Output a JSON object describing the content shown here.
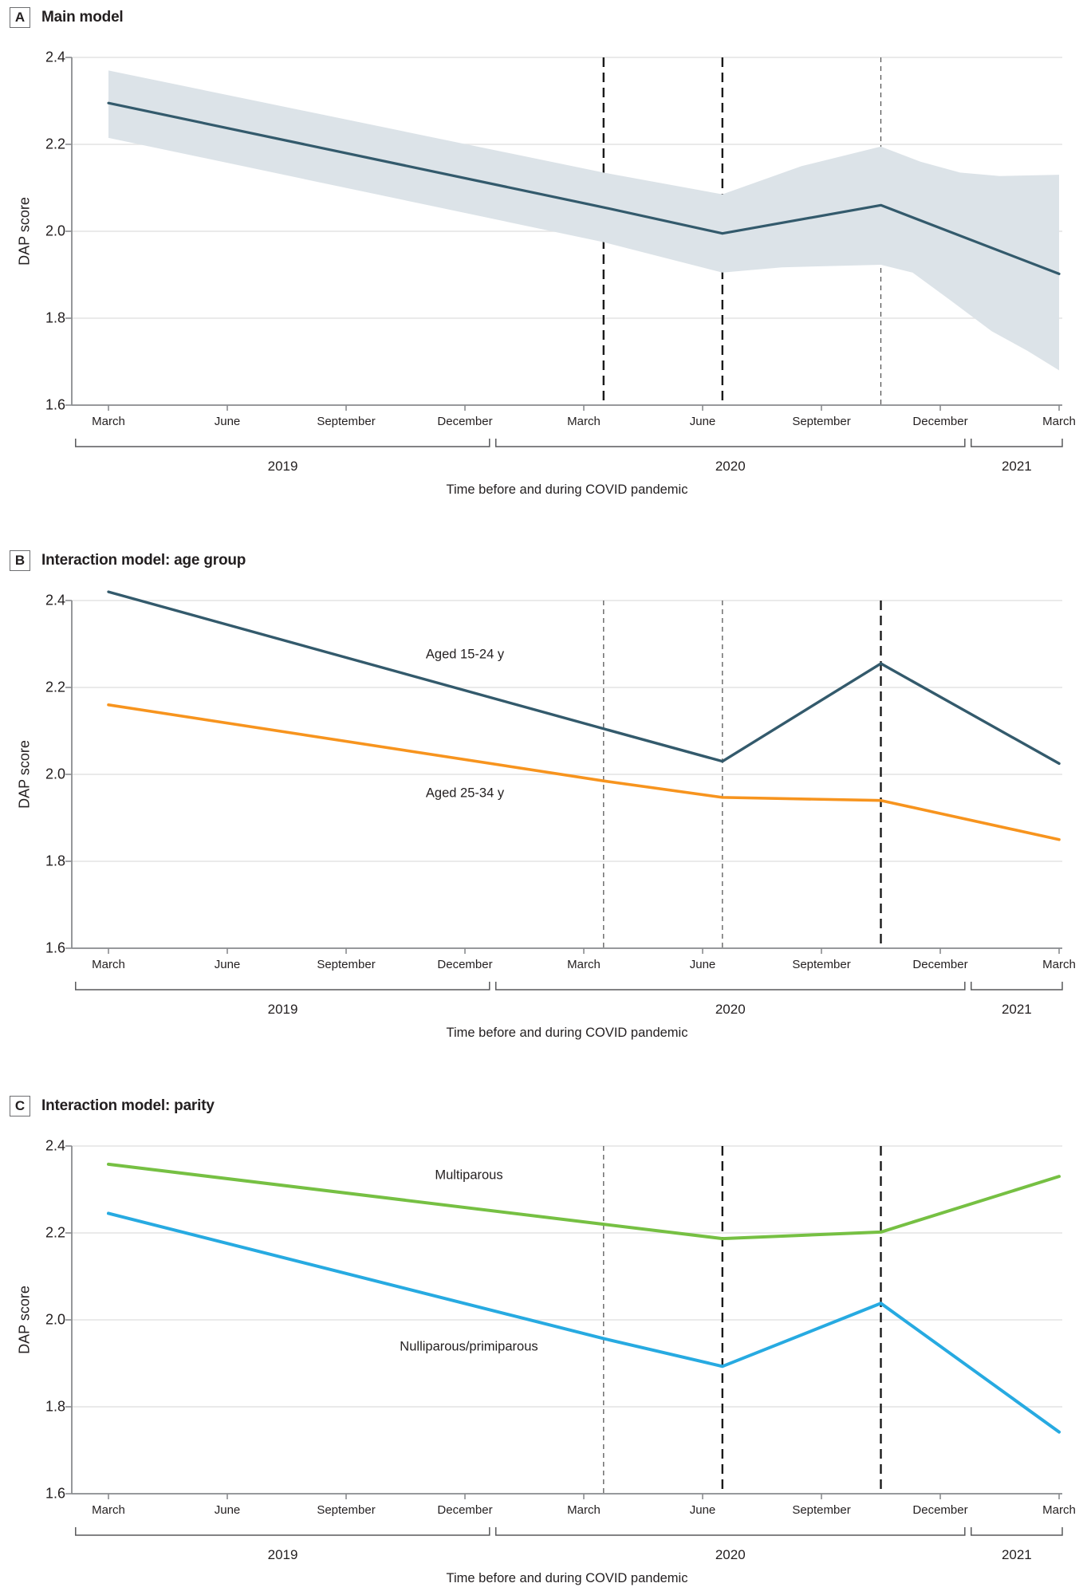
{
  "figure": {
    "xlabel": "Time before and during COVID pandemic",
    "ylabel": "DAP score",
    "x_tick_labels": [
      "March",
      "June",
      "September",
      "December",
      "March",
      "June",
      "September",
      "December",
      "March"
    ],
    "x_tick_months": [
      0,
      3,
      6,
      9,
      12,
      15,
      18,
      21,
      24
    ],
    "year_groups": [
      {
        "label": "2019",
        "start_month": -0.83,
        "end_month": 9.62,
        "label_month": 4.4
      },
      {
        "label": "2020",
        "start_month": 9.78,
        "end_month": 21.62,
        "label_month": 15.7
      },
      {
        "label": "2021",
        "start_month": 21.78,
        "end_month": 24.08,
        "label_month": 22.93
      }
    ],
    "y_tick_labels": [
      "2.4",
      "2.2",
      "2.0",
      "1.8",
      "1.6"
    ],
    "colors": {
      "main_line": "#335A6C",
      "ci_band": "#DCE3E8",
      "aged_15_24": "#335A6C",
      "aged_25_34": "#F7941E",
      "multiparous": "#76C043",
      "nulliparous": "#27AAE1",
      "gridline": "#E4E4E4",
      "axis": "#8A8C8F",
      "bracket": "#58595B",
      "dashed_bold": "#1A1A1A",
      "dashed_light": "#4D4D4D",
      "text": "#231F20"
    }
  },
  "chart_data": [
    {
      "panel": "A",
      "title": "Main model",
      "type": "line",
      "xlabel": "Time before and during COVID pandemic",
      "ylabel": "DAP score",
      "x_unit": "months since March 2019",
      "ylim": [
        1.6,
        2.4
      ],
      "grid": "horizontal",
      "legend_position": "none",
      "series": [
        {
          "name": "Main model estimate",
          "color": "#335A6C",
          "width": 3.2,
          "points": [
            [
              0,
              2.295
            ],
            [
              12.5,
              2.055
            ],
            [
              15.5,
              1.995
            ],
            [
              19.5,
              2.06
            ],
            [
              24,
              1.902
            ]
          ]
        }
      ],
      "band": {
        "name": "95% CI",
        "color": "#DCE3E8",
        "upper": [
          [
            0,
            2.37
          ],
          [
            12.5,
            2.135
          ],
          [
            15.5,
            2.085
          ],
          [
            17.5,
            2.15
          ],
          [
            19.5,
            2.195
          ],
          [
            20.5,
            2.16
          ],
          [
            21.5,
            2.135
          ],
          [
            22.5,
            2.127
          ],
          [
            24,
            2.13
          ]
        ],
        "lower": [
          [
            0,
            2.215
          ],
          [
            12.5,
            1.975
          ],
          [
            15.5,
            1.905
          ],
          [
            17,
            1.917
          ],
          [
            19.5,
            1.923
          ],
          [
            20.3,
            1.905
          ],
          [
            21.2,
            1.845
          ],
          [
            22.3,
            1.77
          ],
          [
            23.2,
            1.725
          ],
          [
            24,
            1.68
          ]
        ]
      },
      "event_lines": [
        {
          "month": 12.5,
          "style": "bold"
        },
        {
          "month": 15.5,
          "style": "bold"
        },
        {
          "month": 19.5,
          "style": "light"
        }
      ],
      "annotations": []
    },
    {
      "panel": "B",
      "title": "Interaction model: age group",
      "type": "line",
      "xlabel": "Time before and during COVID pandemic",
      "ylabel": "DAP score",
      "x_unit": "months since March 2019",
      "ylim": [
        1.6,
        2.4
      ],
      "grid": "horizontal",
      "legend_position": "inline-labels",
      "series": [
        {
          "name": "Aged 15-24 y",
          "color": "#335A6C",
          "width": 3.4,
          "points": [
            [
              0,
              2.42
            ],
            [
              12.5,
              2.105
            ],
            [
              15.5,
              2.03
            ],
            [
              19.5,
              2.255
            ],
            [
              24,
              2.025
            ]
          ]
        },
        {
          "name": "Aged 25-34 y",
          "color": "#F7941E",
          "width": 3.6,
          "points": [
            [
              0,
              2.16
            ],
            [
              12.5,
              1.985
            ],
            [
              15.5,
              1.947
            ],
            [
              19.5,
              1.94
            ],
            [
              24,
              1.85
            ]
          ]
        }
      ],
      "band": null,
      "event_lines": [
        {
          "month": 12.5,
          "style": "light"
        },
        {
          "month": 15.5,
          "style": "light"
        },
        {
          "month": 19.5,
          "style": "bold"
        }
      ],
      "annotations": [
        {
          "text": "Aged 15-24 y",
          "month": 9.0,
          "value": 2.275
        },
        {
          "text": "Aged 25-34 y",
          "month": 9.0,
          "value": 1.956
        }
      ]
    },
    {
      "panel": "C",
      "title": "Interaction model: parity",
      "type": "line",
      "xlabel": "Time before and during COVID pandemic",
      "ylabel": "DAP score",
      "x_unit": "months since March 2019",
      "ylim": [
        1.6,
        2.4
      ],
      "grid": "horizontal",
      "legend_position": "inline-labels",
      "series": [
        {
          "name": "Multiparous",
          "color": "#76C043",
          "width": 4,
          "points": [
            [
              0,
              2.358
            ],
            [
              12.5,
              2.22
            ],
            [
              15.5,
              2.187
            ],
            [
              19.5,
              2.202
            ],
            [
              24,
              2.33
            ]
          ]
        },
        {
          "name": "Nulliparous/primiparous",
          "color": "#27AAE1",
          "width": 4,
          "points": [
            [
              0,
              2.245
            ],
            [
              12.5,
              1.957
            ],
            [
              15.5,
              1.893
            ],
            [
              19.5,
              2.038
            ],
            [
              24,
              1.742
            ]
          ]
        }
      ],
      "band": null,
      "event_lines": [
        {
          "month": 12.5,
          "style": "light"
        },
        {
          "month": 15.5,
          "style": "bold"
        },
        {
          "month": 19.5,
          "style": "bold"
        }
      ],
      "annotations": [
        {
          "text": "Multiparous",
          "month": 9.1,
          "value": 2.332
        },
        {
          "text": "Nulliparous/primiparous",
          "month": 9.1,
          "value": 1.938
        }
      ]
    }
  ]
}
